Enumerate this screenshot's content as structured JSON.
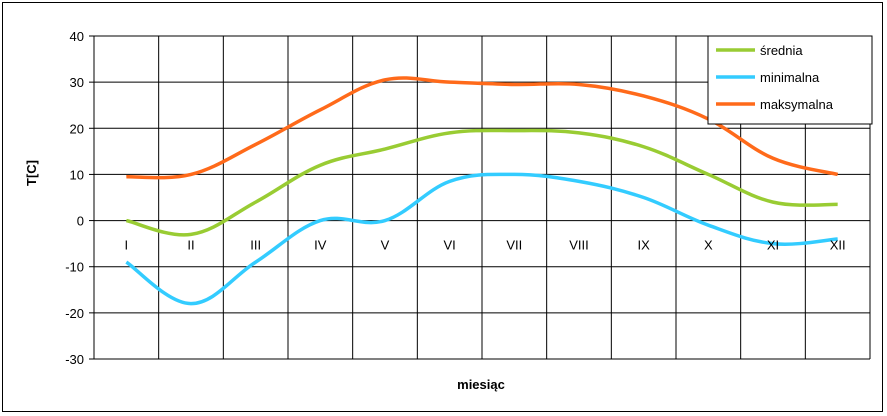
{
  "chart_data": {
    "type": "line",
    "xlabel": "miesiąc",
    "ylabel": "T[C]",
    "ylim": [
      -30,
      40
    ],
    "yticks": [
      40,
      30,
      20,
      10,
      0,
      -10,
      -20,
      -30
    ],
    "categories": [
      "I",
      "II",
      "III",
      "IV",
      "V",
      "VI",
      "VII",
      "VIII",
      "IX",
      "X",
      "XI",
      "XII"
    ],
    "grid": true,
    "legend_position": "top-right",
    "series": [
      {
        "name": "średnia",
        "color": "#99cc33",
        "values": [
          0,
          -3,
          4,
          12,
          15.5,
          19,
          19.5,
          19,
          16,
          10,
          4,
          3.5
        ]
      },
      {
        "name": "minimalna",
        "color": "#33ccff",
        "values": [
          -9,
          -18,
          -9,
          0,
          0,
          8.5,
          10,
          8.5,
          5,
          -1,
          -5,
          -4
        ]
      },
      {
        "name": "maksymalna",
        "color": "#ff6a1a",
        "values": [
          9.5,
          10,
          16.5,
          24,
          30.5,
          30,
          29.5,
          29.5,
          27,
          22,
          13.5,
          10
        ]
      }
    ]
  }
}
